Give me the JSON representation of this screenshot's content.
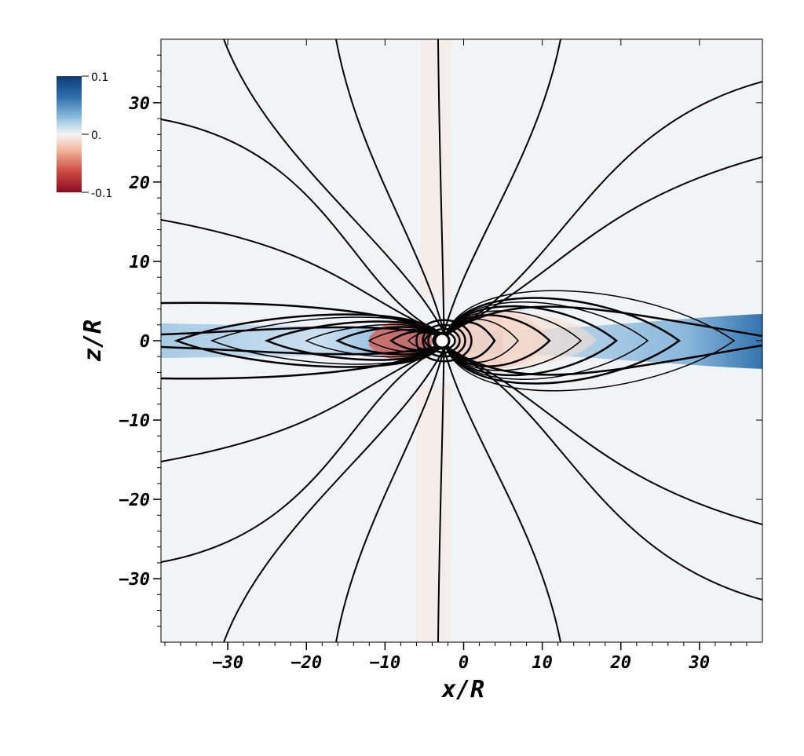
{
  "chart_data": {
    "type": "heatmap",
    "title": "",
    "xlabel": "x/R",
    "ylabel": "z/R",
    "xlim": [
      -38.5,
      38
    ],
    "ylim": [
      -38,
      38
    ],
    "xticks": [
      -30,
      -20,
      -10,
      0,
      10,
      20,
      30
    ],
    "yticks": [
      30,
      20,
      10,
      0,
      -10,
      -20,
      -30
    ],
    "xtick_labels": [
      "−30",
      "−20",
      "−10",
      "0",
      "10",
      "20",
      "30"
    ],
    "ytick_labels": [
      "30",
      "20",
      "10",
      "0",
      "−10",
      "−20",
      "−30"
    ],
    "grid": false,
    "central_body": {
      "x": -2.5,
      "z": 0,
      "radius": 1
    },
    "colorbar": {
      "position": "top-left",
      "min": -0.1,
      "max": 0.1,
      "tick_labels": [
        "0.1",
        "0.",
        "-0.1"
      ],
      "colors": [
        "#08306b",
        "#2166ac",
        "#6baed6",
        "#f7f7f7",
        "#f4a582",
        "#d6604d",
        "#b2182b",
        "#67001f"
      ]
    },
    "colormap": "diverging red-white-blue",
    "open_field_lines_x_intercepts_top": [
      -38.5,
      -30,
      -16,
      -3,
      12.5,
      38
    ],
    "open_field_lines_x_intercepts_bottom": [
      -38.5,
      -30,
      -16,
      -3,
      12.5,
      38
    ],
    "closed_loop_extents": [
      -36,
      -31,
      -24,
      -18,
      -14,
      -9,
      5,
      8,
      12,
      15,
      20,
      24,
      28,
      34
    ]
  }
}
